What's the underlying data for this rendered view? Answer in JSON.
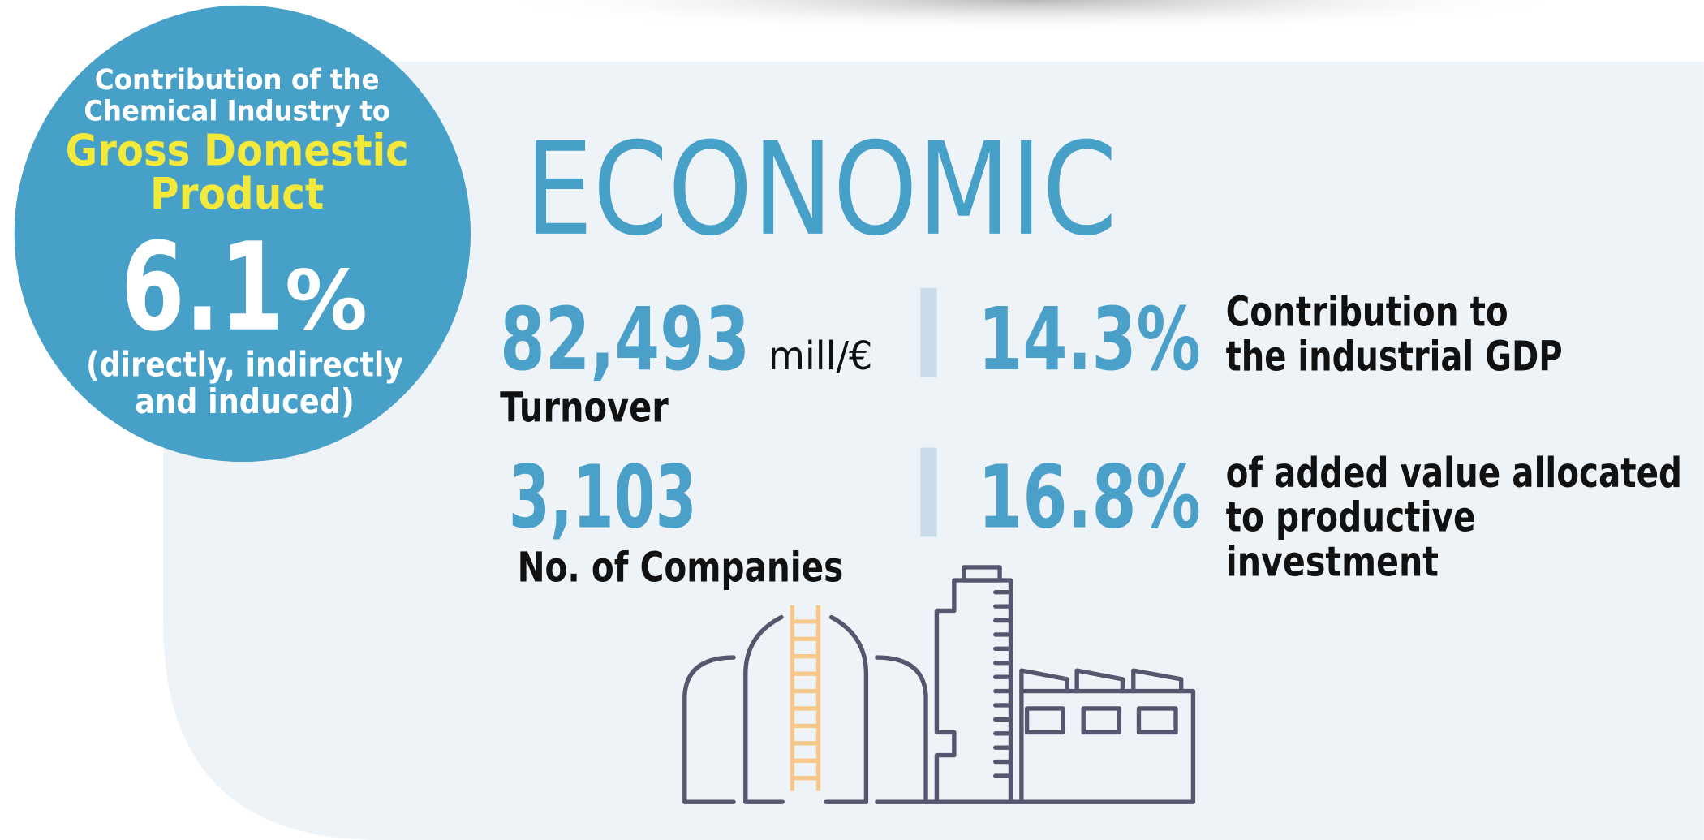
{
  "badge": {
    "lines": [
      "Contribution of the",
      "Chemical Industry to"
    ],
    "highlight": [
      "Gross Domestic",
      "Product"
    ],
    "value": "6.1",
    "unit": "%",
    "note": [
      "(directly, indirectly",
      "and induced)"
    ]
  },
  "title": "ECONOMIC",
  "stats": [
    {
      "value": "82,493",
      "unit": "mill/€",
      "label": "Turnover"
    },
    {
      "value": "14.3%",
      "label": [
        "Contribution to",
        "the industrial GDP"
      ]
    },
    {
      "value": "3,103",
      "label": "No. of Companies"
    },
    {
      "value": "16.8%",
      "label": [
        "of added value allocated",
        "to productive",
        "investment"
      ]
    }
  ]
}
